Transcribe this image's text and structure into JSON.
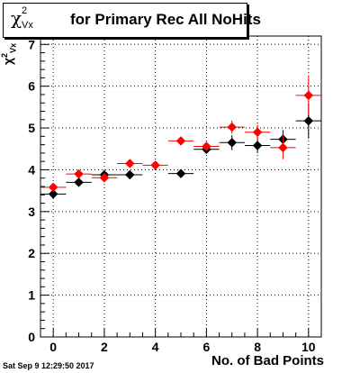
{
  "title": {
    "symbol": "χ",
    "superscript": "2",
    "subscript": "Vx",
    "text": "for Primary Rec All NoHits"
  },
  "timestamp": "Sat Sep  9 12:29:50 2017",
  "chart_data": {
    "type": "scatter",
    "xlabel": "No. of Bad Points",
    "ylabel": {
      "symbol": "χ",
      "superscript": "2",
      "subscript": "Vx"
    },
    "xlim": [
      -0.5,
      10.5
    ],
    "ylim": [
      0,
      7.2
    ],
    "x_ticks": [
      0,
      2,
      4,
      6,
      8,
      10
    ],
    "y_ticks": [
      0,
      1,
      2,
      3,
      4,
      5,
      6,
      7
    ],
    "grid": true,
    "x_error": 0.5,
    "series": [
      {
        "color": "#000000",
        "marker": "diamond",
        "x": [
          0,
          1,
          2,
          3,
          5,
          6,
          7,
          8,
          9,
          10
        ],
        "y": [
          3.42,
          3.7,
          3.88,
          3.88,
          3.91,
          4.49,
          4.65,
          4.58,
          4.73,
          5.17
        ],
        "yerr": [
          0.06,
          0.06,
          0.07,
          0.07,
          0.07,
          0.1,
          0.18,
          0.18,
          0.22,
          0.42
        ]
      },
      {
        "color": "#ff0000",
        "marker": "diamond",
        "x": [
          0,
          1,
          2,
          3,
          4,
          5,
          6,
          7,
          8,
          9,
          10
        ],
        "y": [
          3.58,
          3.9,
          3.81,
          4.15,
          4.11,
          4.69,
          4.56,
          5.02,
          4.9,
          4.53,
          5.78
        ],
        "yerr": [
          0.05,
          0.07,
          0.07,
          0.07,
          0.08,
          0.09,
          0.1,
          0.16,
          0.18,
          0.28,
          0.47
        ]
      }
    ]
  }
}
